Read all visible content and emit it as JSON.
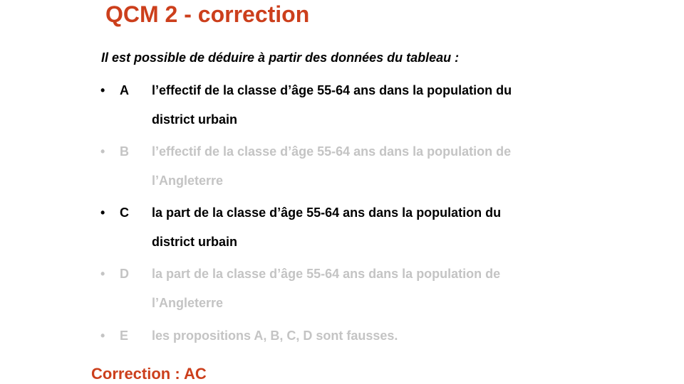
{
  "slide": {
    "title": "QCM 2 - correction",
    "intro": "Il est possible de déduire à partir des données du tableau :",
    "bullet_char": "•",
    "options": [
      {
        "letter": "A",
        "line1": "l’effectif de la classe d’âge 55-64 ans dans la population du",
        "line2": "district urbain"
      },
      {
        "letter": "B",
        "line1": "l’effectif de la classe d’âge 55-64 ans dans la population de",
        "line2": "l’Angleterre"
      },
      {
        "letter": "C",
        "line1": "la part de la classe d’âge 55-64 ans dans la population du",
        "line2": "district urbain"
      },
      {
        "letter": "D",
        "line1": "la part de la classe d’âge 55-64 ans dans la population de",
        "line2": "l’Angleterre"
      },
      {
        "letter": "E",
        "line1": "les propositions A, B, C, D sont fausses.",
        "line2": ""
      }
    ],
    "correction": "Correction : AC"
  },
  "colors": {
    "accent": "#cc3f1c",
    "text_active": "#000000",
    "text_inactive": "#c4c4c4"
  }
}
